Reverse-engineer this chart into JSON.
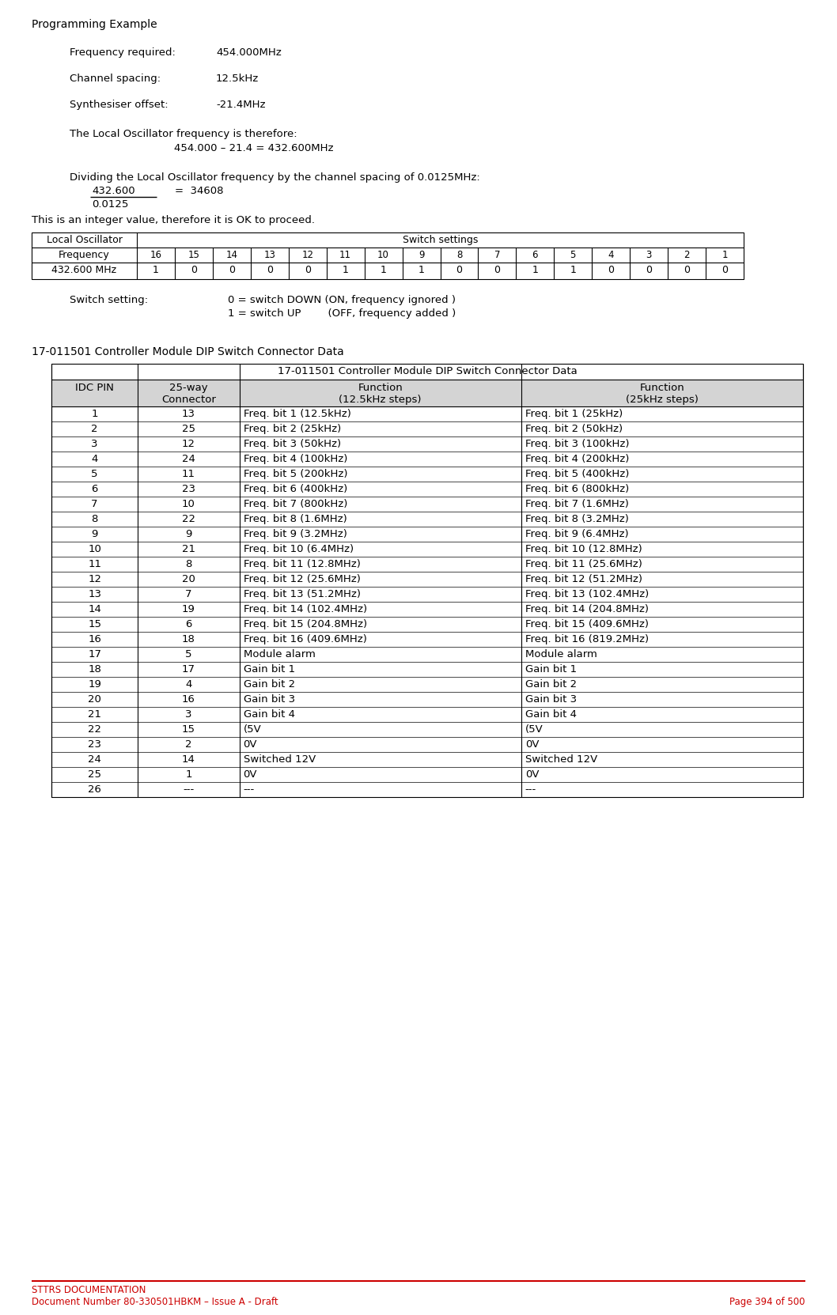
{
  "page_bg": "#ffffff",
  "title": "Programming Example",
  "freq_required_label": "Frequency required:",
  "freq_required_value": "454.000MHz",
  "channel_spacing_label": "Channel spacing:",
  "channel_spacing_value": "12.5kHz",
  "synth_offset_label": "Synthesiser offset:",
  "synth_offset_value": "-21.4MHz",
  "lo_text": "The Local Oscillator frequency is therefore:",
  "lo_calc": "454.000 – 21.4 = 432.600MHz",
  "dividing_text": "Dividing the Local Oscillator frequency by the channel spacing of 0.0125MHz:",
  "fraction_num": "432.600",
  "fraction_eq": "=  34608",
  "fraction_den": "0.0125",
  "integer_text": "This is an integer value, therefore it is OK to proceed.",
  "switch_bits": [
    "16",
    "15",
    "14",
    "13",
    "12",
    "11",
    "10",
    "9",
    "8",
    "7",
    "6",
    "5",
    "4",
    "3",
    "2",
    "1"
  ],
  "switch_freq": "432.600 MHz",
  "switch_values": [
    "1",
    "0",
    "0",
    "0",
    "0",
    "1",
    "1",
    "1",
    "0",
    "0",
    "1",
    "1",
    "0",
    "0",
    "0",
    "0"
  ],
  "switch_note1": "0 = switch DOWN (ON, frequency ignored )",
  "switch_note2": "1 = switch UP        (OFF, frequency added )",
  "switch_setting_label": "Switch setting:",
  "section_title": "17-011501 Controller Module DIP Switch Connector Data",
  "big_table_title": "17-011501 Controller Module DIP Switch Connector Data",
  "table_rows": [
    [
      "1",
      "13",
      "Freq. bit 1 (12.5kHz)",
      "Freq. bit 1 (25kHz)"
    ],
    [
      "2",
      "25",
      "Freq. bit 2 (25kHz)",
      "Freq. bit 2 (50kHz)"
    ],
    [
      "3",
      "12",
      "Freq. bit 3 (50kHz)",
      "Freq. bit 3 (100kHz)"
    ],
    [
      "4",
      "24",
      "Freq. bit 4 (100kHz)",
      "Freq. bit 4 (200kHz)"
    ],
    [
      "5",
      "11",
      "Freq. bit 5 (200kHz)",
      "Freq. bit 5 (400kHz)"
    ],
    [
      "6",
      "23",
      "Freq. bit 6 (400kHz)",
      "Freq. bit 6 (800kHz)"
    ],
    [
      "7",
      "10",
      "Freq. bit 7 (800kHz)",
      "Freq. bit 7 (1.6MHz)"
    ],
    [
      "8",
      "22",
      "Freq. bit 8 (1.6MHz)",
      "Freq. bit 8 (3.2MHz)"
    ],
    [
      "9",
      "9",
      "Freq. bit 9 (3.2MHz)",
      "Freq. bit 9 (6.4MHz)"
    ],
    [
      "10",
      "21",
      "Freq. bit 10 (6.4MHz)",
      "Freq. bit 10 (12.8MHz)"
    ],
    [
      "11",
      "8",
      "Freq. bit 11 (12.8MHz)",
      "Freq. bit 11 (25.6MHz)"
    ],
    [
      "12",
      "20",
      "Freq. bit 12 (25.6MHz)",
      "Freq. bit 12 (51.2MHz)"
    ],
    [
      "13",
      "7",
      "Freq. bit 13 (51.2MHz)",
      "Freq. bit 13 (102.4MHz)"
    ],
    [
      "14",
      "19",
      "Freq. bit 14 (102.4MHz)",
      "Freq. bit 14 (204.8MHz)"
    ],
    [
      "15",
      "6",
      "Freq. bit 15 (204.8MHz)",
      "Freq. bit 15 (409.6MHz)"
    ],
    [
      "16",
      "18",
      "Freq. bit 16 (409.6MHz)",
      "Freq. bit 16 (819.2MHz)"
    ],
    [
      "17",
      "5",
      "Module alarm",
      "Module alarm"
    ],
    [
      "18",
      "17",
      "Gain bit 1",
      "Gain bit 1"
    ],
    [
      "19",
      "4",
      "Gain bit 2",
      "Gain bit 2"
    ],
    [
      "20",
      "16",
      "Gain bit 3",
      "Gain bit 3"
    ],
    [
      "21",
      "3",
      "Gain bit 4",
      "Gain bit 4"
    ],
    [
      "22",
      "15",
      "(5V",
      "(5V"
    ],
    [
      "23",
      "2",
      "0V",
      "0V"
    ],
    [
      "24",
      "14",
      "Switched 12V",
      "Switched 12V"
    ],
    [
      "25",
      "1",
      "0V",
      "0V"
    ],
    [
      "26",
      "---",
      "---",
      "---"
    ]
  ],
  "footer_line_color": "#cc0000",
  "footer_text1": "STTRS DOCUMENTATION",
  "footer_text2": "Document Number 80-330501HBKM – Issue A - Draft",
  "footer_text3": "Page 394 of 500",
  "footer_color": "#cc0000"
}
